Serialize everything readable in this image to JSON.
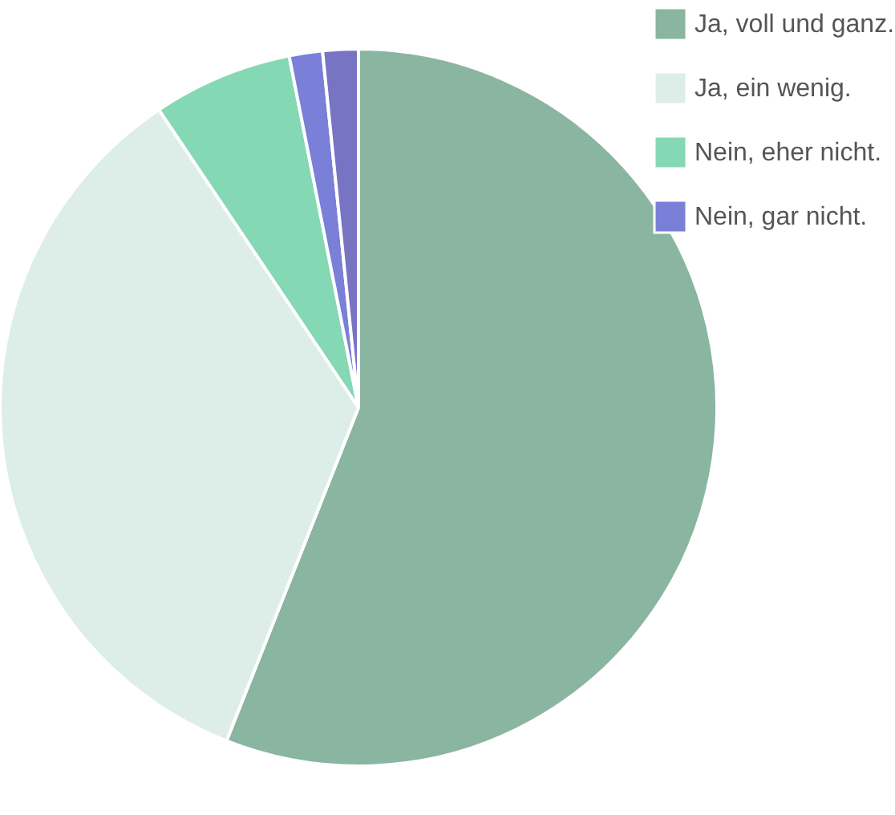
{
  "chart_data": {
    "type": "pie",
    "categories": [
      "Ja, voll und ganz.",
      "Ja, ein wenig.",
      "Nein, eher nicht.",
      "Nein, gar nicht.",
      null
    ],
    "values": [
      56.0,
      34.6,
      6.3,
      1.5,
      1.6
    ],
    "colors": [
      "#8ab5a0",
      "#ddeee8",
      "#84d8b4",
      "#7a7fd8",
      "#7774c4"
    ],
    "legend": "right"
  }
}
